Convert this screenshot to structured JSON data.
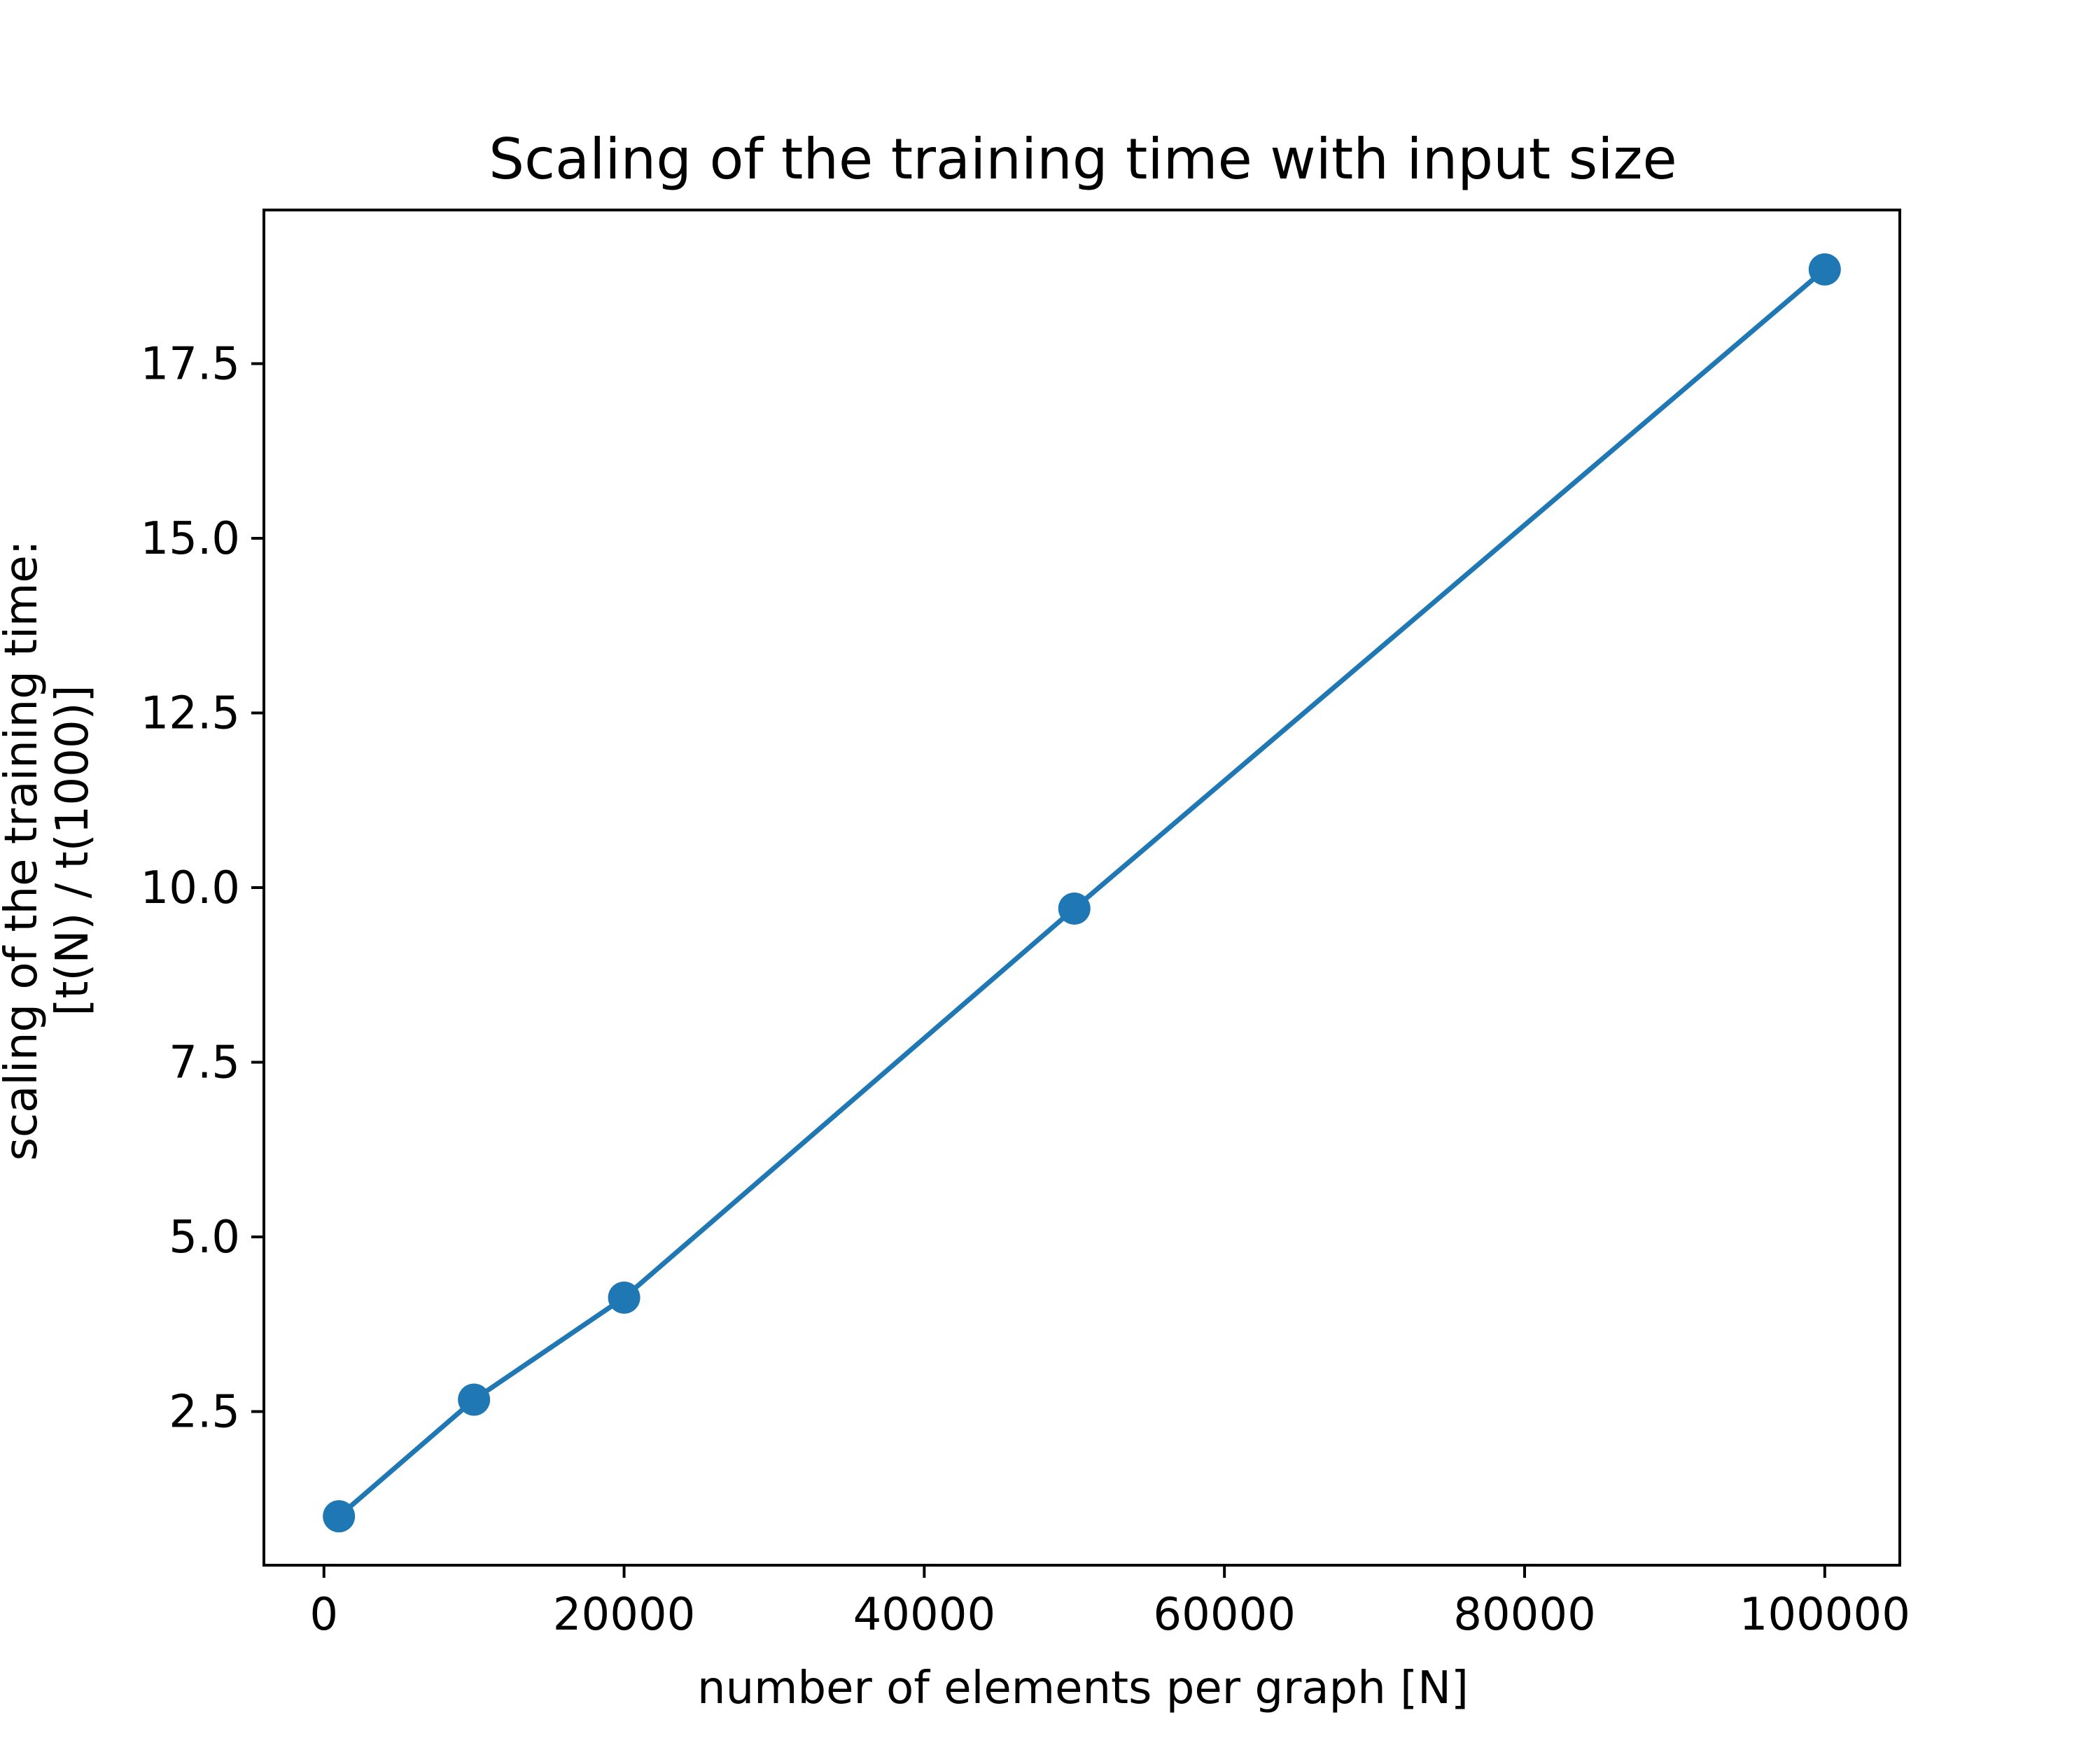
{
  "chart_data": {
    "type": "line",
    "title": "Scaling of the training time with input size",
    "xlabel": "number of elements per graph [N]",
    "ylabel_lines": [
      "scaling of the training time:",
      "[t(N) / t(1000)]"
    ],
    "xlim": [
      -4000,
      105000
    ],
    "ylim": [
      0.3,
      19.7
    ],
    "xticks": [
      0,
      20000,
      40000,
      60000,
      80000,
      100000
    ],
    "xtick_labels": [
      "0",
      "20000",
      "40000",
      "60000",
      "80000",
      "100000"
    ],
    "yticks": [
      2.5,
      5.0,
      7.5,
      10.0,
      12.5,
      15.0,
      17.5
    ],
    "ytick_labels": [
      "2.5",
      "5.0",
      "7.5",
      "10.0",
      "12.5",
      "15.0",
      "17.5"
    ],
    "grid": false,
    "series": [
      {
        "color": "#1f77b4",
        "marker": "circle",
        "points": [
          {
            "x": 1000,
            "y": 1.0
          },
          {
            "x": 10000,
            "y": 2.67
          },
          {
            "x": 20000,
            "y": 4.13
          },
          {
            "x": 50000,
            "y": 9.7
          },
          {
            "x": 100000,
            "y": 18.85
          }
        ]
      }
    ]
  }
}
